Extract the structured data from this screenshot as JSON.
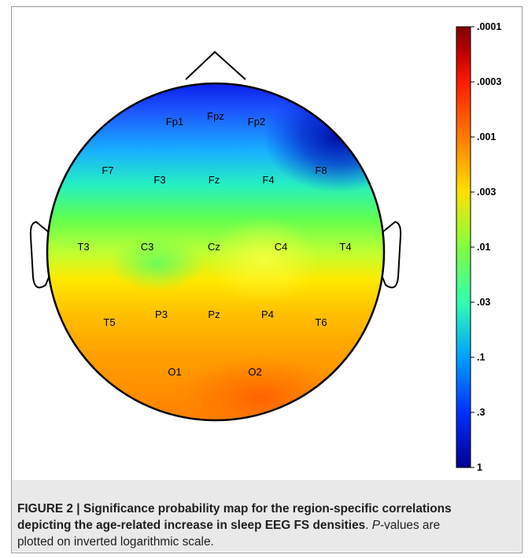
{
  "figure": {
    "title": "Significance probability map",
    "electrodes": [
      {
        "label": "Fp1"
      },
      {
        "label": "Fpz"
      },
      {
        "label": "Fp2"
      },
      {
        "label": "F7"
      },
      {
        "label": "F3"
      },
      {
        "label": "Fz"
      },
      {
        "label": "F4"
      },
      {
        "label": "F8"
      },
      {
        "label": "T3"
      },
      {
        "label": "C3"
      },
      {
        "label": "Cz"
      },
      {
        "label": "C4"
      },
      {
        "label": "T4"
      },
      {
        "label": "T5"
      },
      {
        "label": "P3"
      },
      {
        "label": "Pz"
      },
      {
        "label": "P4"
      },
      {
        "label": "T6"
      },
      {
        "label": "O1"
      },
      {
        "label": "O2"
      }
    ],
    "colorbar": {
      "scale": "inverted logarithmic",
      "ticks": [
        ".0001",
        ".0003",
        ".001",
        ".003",
        ".01",
        ".03",
        ".1",
        ".3",
        "1"
      ],
      "colors": [
        "#800000",
        "#ff1a00",
        "#ff7a00",
        "#ffe000",
        "#80ff40",
        "#30ffb0",
        "#00a0ff",
        "#0030ff",
        "#000090"
      ]
    }
  },
  "caption": {
    "label": "FIGURE 2 | ",
    "bold_text": "Significance probability map for the region-specific correlations depicting the age-related increase in sleep EEG FS densities",
    "sep": ". ",
    "italic_p": "P",
    "rest": "-values are plotted on inverted logarithmic scale."
  }
}
